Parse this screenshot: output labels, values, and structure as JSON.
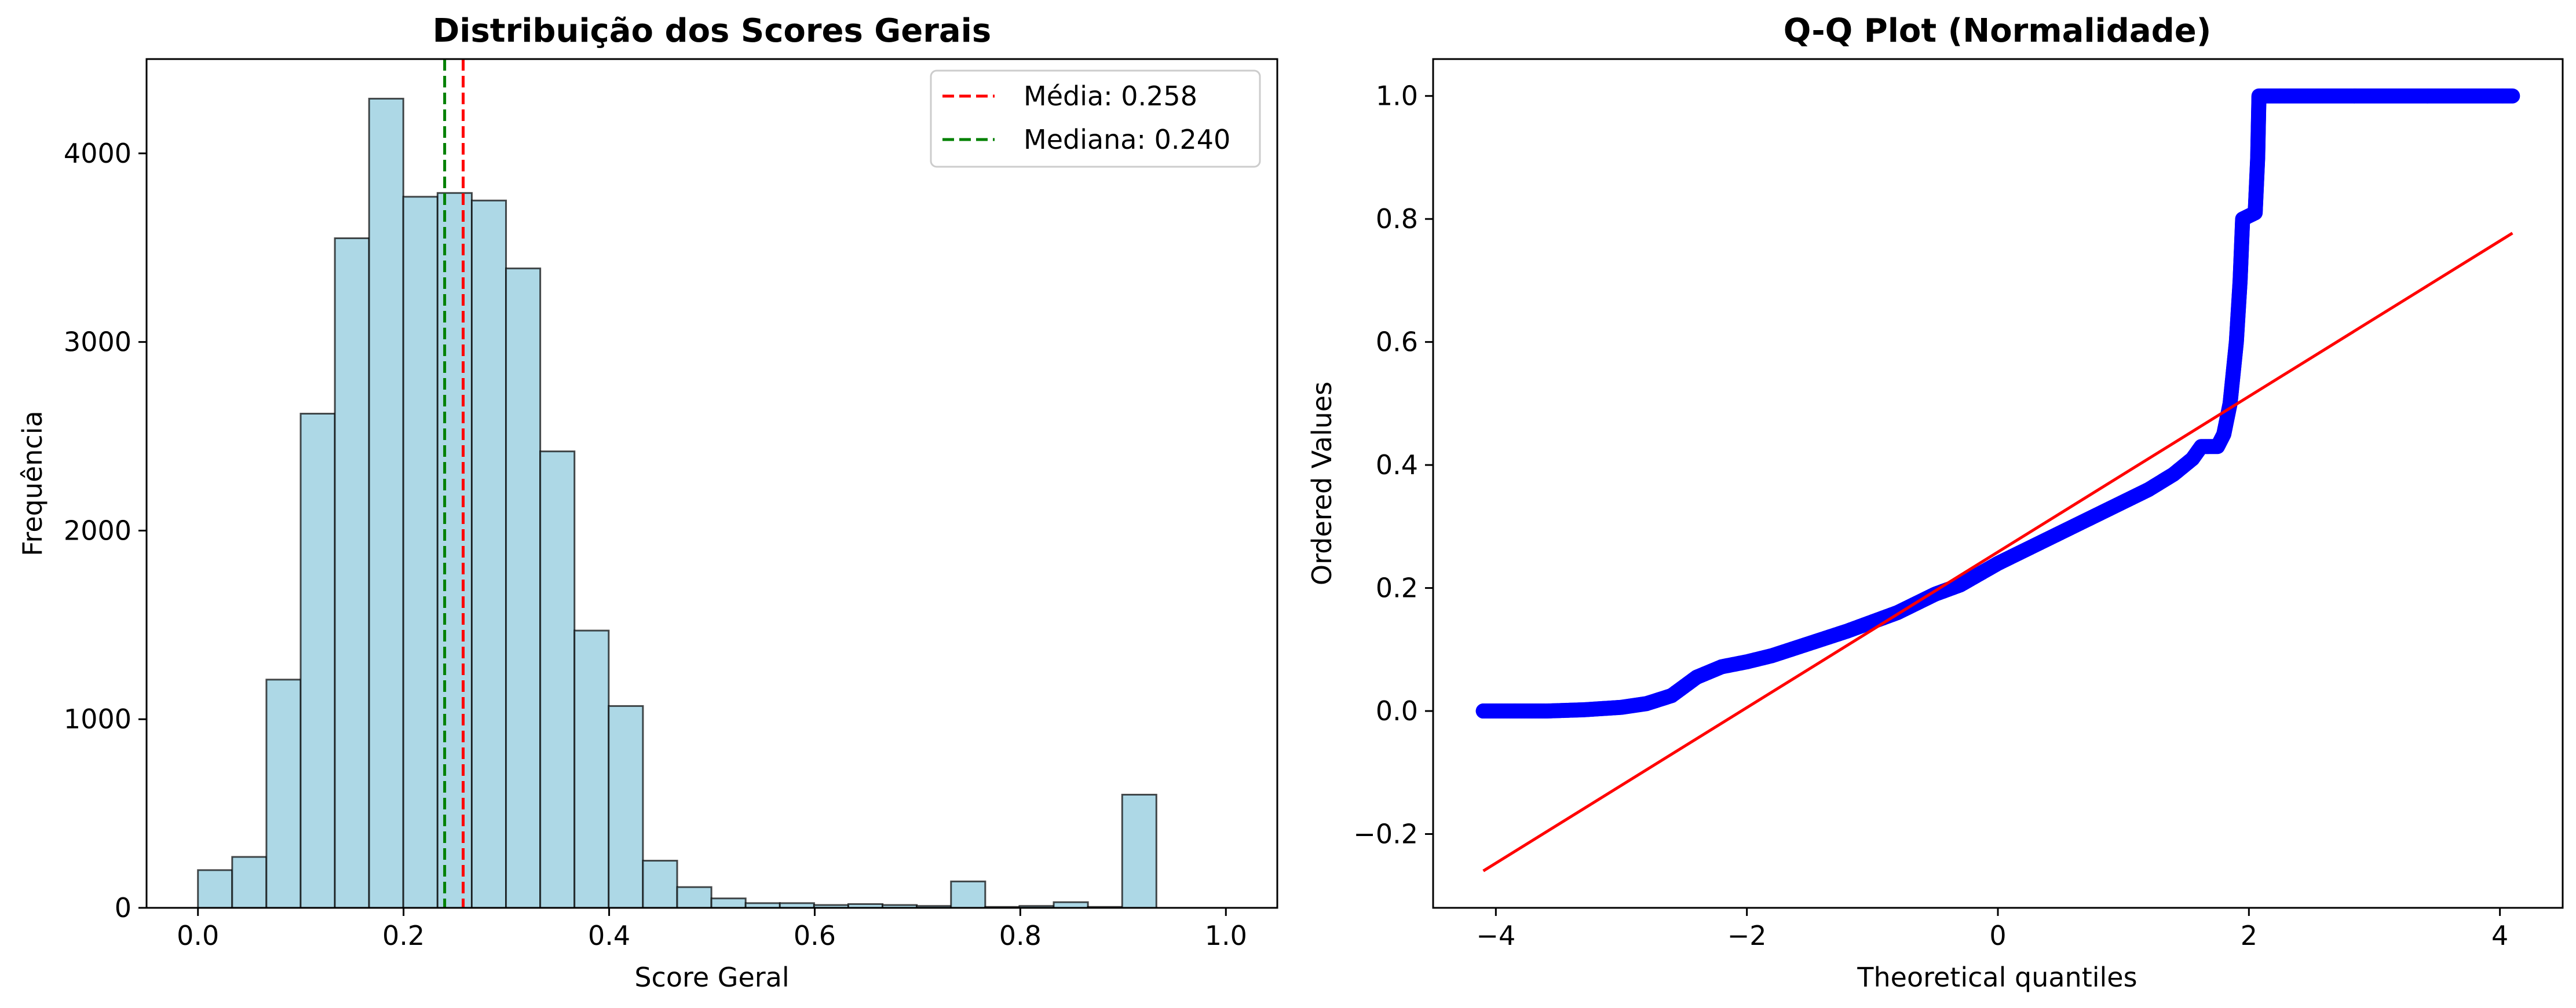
{
  "chart_data": [
    {
      "type": "bar",
      "title": "Distribuição dos Scores Gerais",
      "xlabel": "Score Geral",
      "ylabel": "Frequência",
      "xlim": [
        -0.05,
        1.05
      ],
      "ylim": [
        0,
        4500
      ],
      "xticks": [
        0.0,
        0.2,
        0.4,
        0.6,
        0.8,
        1.0
      ],
      "xtick_labels": [
        "0.0",
        "0.2",
        "0.4",
        "0.6",
        "0.8",
        "1.0"
      ],
      "yticks": [
        0,
        1000,
        2000,
        3000,
        4000
      ],
      "ytick_labels": [
        "0",
        "1000",
        "2000",
        "3000",
        "4000"
      ],
      "bin_start": 0.0,
      "bin_width": 0.0333,
      "counts": [
        200,
        270,
        1210,
        2620,
        3550,
        4290,
        3770,
        3790,
        3750,
        3390,
        2420,
        1470,
        1070,
        250,
        110,
        50,
        25,
        25,
        15,
        20,
        15,
        10,
        140,
        5,
        10,
        30,
        5,
        600,
        0,
        0
      ],
      "bar_color": "#ADD8E6",
      "edge_color": "#000000",
      "lines": [
        {
          "name": "Média: 0.258",
          "x": 0.258,
          "color": "#ff0000",
          "style": "dashed"
        },
        {
          "name": "Mediana: 0.240",
          "x": 0.24,
          "color": "#008000",
          "style": "dashed"
        }
      ],
      "legend_position": "upper right",
      "grid": false
    },
    {
      "type": "scatter",
      "title": "Q-Q Plot (Normalidade)",
      "xlabel": "Theoretical quantiles",
      "ylabel": "Ordered Values",
      "xlim": [
        -4.5,
        4.5
      ],
      "ylim": [
        -0.32,
        1.06
      ],
      "xticks": [
        -4,
        -2,
        0,
        2,
        4
      ],
      "xtick_labels": [
        "−4",
        "−2",
        "0",
        "2",
        "4"
      ],
      "yticks": [
        -0.2,
        0.0,
        0.2,
        0.4,
        0.6,
        0.8,
        1.0
      ],
      "ytick_labels": [
        "−0.2",
        "0.0",
        "0.2",
        "0.4",
        "0.6",
        "0.8",
        "1.0"
      ],
      "points_color": "#0000ff",
      "line_color": "#ff0000",
      "curve_points": [
        [
          -4.1,
          0.0
        ],
        [
          -3.85,
          0.0
        ],
        [
          -3.6,
          0.0
        ],
        [
          -3.3,
          0.002
        ],
        [
          -3.0,
          0.006
        ],
        [
          -2.8,
          0.012
        ],
        [
          -2.6,
          0.025
        ],
        [
          -2.5,
          0.04
        ],
        [
          -2.4,
          0.055
        ],
        [
          -2.2,
          0.072
        ],
        [
          -2.0,
          0.08
        ],
        [
          -1.8,
          0.09
        ],
        [
          -1.5,
          0.11
        ],
        [
          -1.2,
          0.13
        ],
        [
          -1.0,
          0.145
        ],
        [
          -0.8,
          0.16
        ],
        [
          -0.5,
          0.19
        ],
        [
          -0.3,
          0.205
        ],
        [
          0.0,
          0.24
        ],
        [
          0.3,
          0.27
        ],
        [
          0.6,
          0.3
        ],
        [
          0.9,
          0.33
        ],
        [
          1.2,
          0.36
        ],
        [
          1.4,
          0.385
        ],
        [
          1.55,
          0.41
        ],
        [
          1.62,
          0.43
        ],
        [
          1.75,
          0.43
        ],
        [
          1.8,
          0.45
        ],
        [
          1.85,
          0.5
        ],
        [
          1.9,
          0.6
        ],
        [
          1.93,
          0.7
        ],
        [
          1.95,
          0.8
        ],
        [
          2.05,
          0.81
        ],
        [
          2.07,
          0.9
        ],
        [
          2.08,
          1.0
        ],
        [
          2.3,
          1.0
        ],
        [
          3.0,
          1.0
        ],
        [
          3.5,
          1.0
        ],
        [
          3.8,
          1.0
        ],
        [
          4.1,
          1.0
        ]
      ],
      "isolated_points": [
        [
          -4.1,
          0.0
        ],
        [
          -3.85,
          0.0
        ],
        [
          4.1,
          1.0
        ]
      ],
      "fit_line": {
        "x": [
          -4.1,
          4.1
        ],
        "y": [
          -0.26,
          0.777
        ]
      }
    }
  ]
}
